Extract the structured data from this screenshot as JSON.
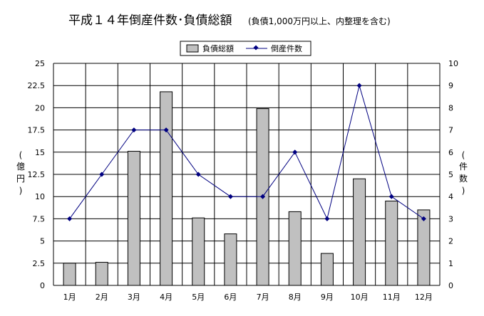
{
  "chart_data": {
    "type": "bar+line",
    "title": "平成１４年倒産件数･負債総額",
    "subtitle": "(負債1,000万円以上、内整理を含む)",
    "categories": [
      "1月",
      "2月",
      "3月",
      "4月",
      "5月",
      "6月",
      "7月",
      "8月",
      "9月",
      "10月",
      "11月",
      "12月"
    ],
    "series": [
      {
        "name": "負債総額",
        "type": "bar",
        "axis": "left",
        "color": "#c0c0c0",
        "values": [
          2.5,
          2.6,
          15.1,
          21.8,
          7.6,
          5.8,
          19.9,
          8.3,
          3.6,
          12.0,
          9.5,
          8.5
        ]
      },
      {
        "name": "倒産件数",
        "type": "line",
        "axis": "right",
        "color": "#000080",
        "values": [
          3,
          5,
          7,
          7,
          5,
          4,
          4,
          6,
          3,
          9,
          4,
          3
        ]
      }
    ],
    "y_left": {
      "label": [
        "(",
        "億",
        "円",
        ")"
      ],
      "ylim": [
        0,
        25
      ],
      "ticks": [
        "0",
        "2.5",
        "5",
        "7.5",
        "10",
        "12.5",
        "15",
        "17.5",
        "20",
        "22.5",
        "25"
      ]
    },
    "y_right": {
      "label": [
        "(",
        "件",
        "数",
        ")"
      ],
      "ylim": [
        0,
        10
      ],
      "ticks": [
        "0",
        "1",
        "2",
        "3",
        "4",
        "5",
        "6",
        "7",
        "8",
        "9",
        "10"
      ]
    },
    "grid": true,
    "legend_position": "top-center"
  }
}
